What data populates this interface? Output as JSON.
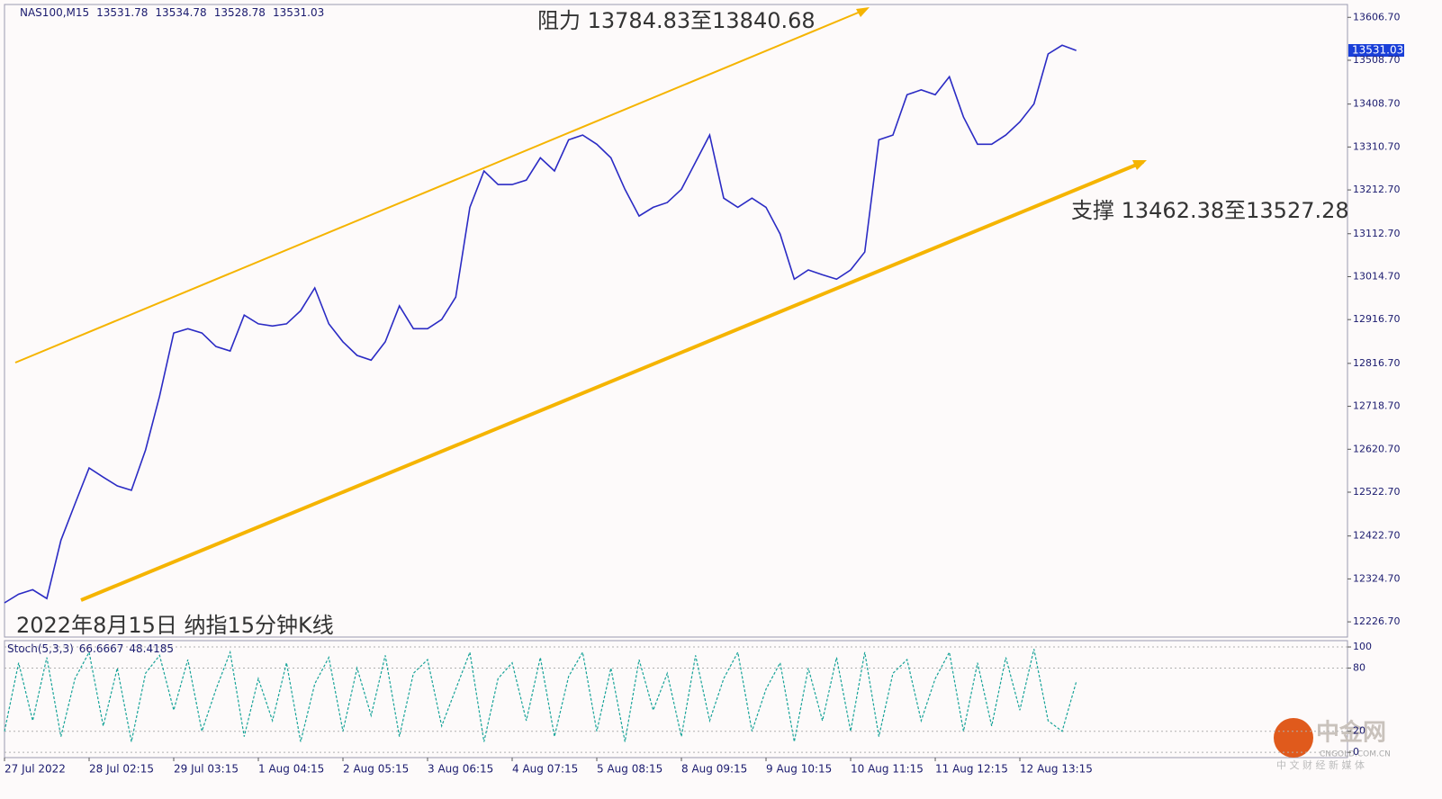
{
  "chart_data": [
    {
      "type": "line",
      "symbol": "NAS100,M15",
      "ohlc": [
        13531.78,
        13534.78,
        13528.78,
        13531.03
      ],
      "annotations": [
        "阻力 13784.83至13840.68",
        "支撑 13462.38至13527.28",
        "2022年8月15日 纳指15分钟K线"
      ],
      "categories": [
        "27 Jul 2022",
        null,
        null,
        null,
        null,
        null,
        "28 Jul 02:15",
        null,
        null,
        null,
        null,
        null,
        "29 Jul 03:15",
        null,
        null,
        null,
        null,
        null,
        "1 Aug 04:15",
        null,
        null,
        null,
        null,
        null,
        "2 Aug 05:15",
        null,
        null,
        null,
        null,
        null,
        "3 Aug 06:15",
        null,
        null,
        null,
        null,
        null,
        "4 Aug 07:15",
        null,
        null,
        null,
        null,
        null,
        "5 Aug 08:15",
        null,
        null,
        null,
        null,
        null,
        "8 Aug 09:15",
        null,
        null,
        null,
        null,
        null,
        "9 Aug 10:15",
        null,
        null,
        null,
        null,
        null,
        "10 Aug 11:15",
        null,
        null,
        null,
        null,
        null,
        "11 Aug 12:15",
        null,
        null,
        null,
        null,
        null,
        "12 Aug 13:15",
        null,
        null,
        null,
        null
      ],
      "values": [
        12270,
        12290,
        12300,
        12280,
        12413,
        12496,
        12578,
        12557,
        12537,
        12527,
        12619,
        12742,
        12886,
        12896,
        12886,
        12855,
        12845,
        12927,
        12907,
        12902,
        12907,
        12937,
        12989,
        12907,
        12866,
        12835,
        12824,
        12866,
        12948,
        12896,
        12896,
        12917,
        12968,
        13173,
        13256,
        13225,
        13225,
        13235,
        13286,
        13256,
        13327,
        13338,
        13317,
        13286,
        13214,
        13153,
        13173,
        13184,
        13214,
        13276,
        13338,
        13194,
        13173,
        13194,
        13173,
        13112,
        13009,
        13030,
        13019,
        13009,
        13030,
        13071,
        13327,
        13338,
        13430,
        13441,
        13430,
        13471,
        13379,
        13317,
        13317,
        13338,
        13368,
        13409,
        13523,
        13543,
        13531
      ],
      "color": "#2b2bc4",
      "ylim": [
        12192,
        13636
      ],
      "yticks": [
        {
          "value": 12226.7,
          "label": "12226.70"
        },
        {
          "value": 12324.7,
          "label": "12324.70"
        },
        {
          "value": 12422.7,
          "label": "12422.70"
        },
        {
          "value": 12522.7,
          "label": "12522.70"
        },
        {
          "value": 12620.7,
          "label": "12620.70"
        },
        {
          "value": 12718.7,
          "label": "12718.70"
        },
        {
          "value": 12816.7,
          "label": "12816.70"
        },
        {
          "value": 12916.7,
          "label": "12916.70"
        },
        {
          "value": 13014.7,
          "label": "13014.70"
        },
        {
          "value": 13112.7,
          "label": "13112.70"
        },
        {
          "value": 13212.7,
          "label": "13212.70"
        },
        {
          "value": 13310.7,
          "label": "13310.70"
        },
        {
          "value": 13408.7,
          "label": "13408.70"
        },
        {
          "value": 13508.7,
          "label": "13508.70"
        },
        {
          "value": 13606.7,
          "label": "13606.70"
        }
      ]
    },
    {
      "type": "line",
      "indicator": "Stoch(5,3,3)",
      "readings": [
        66.6667,
        48.4185
      ],
      "values": [
        20,
        85,
        30,
        90,
        15,
        70,
        95,
        25,
        80,
        10,
        75,
        92,
        40,
        88,
        20,
        60,
        95,
        15,
        70,
        30,
        85,
        10,
        65,
        90,
        20,
        80,
        35,
        92,
        15,
        75,
        88,
        25,
        60,
        95,
        10,
        70,
        85,
        30,
        90,
        15,
        72,
        95,
        20,
        80,
        10,
        88,
        40,
        75,
        15,
        92,
        30,
        70,
        95,
        20,
        60,
        85,
        10,
        80,
        30,
        90,
        20,
        95,
        15,
        75,
        88,
        30,
        70,
        95,
        20,
        85,
        25,
        90,
        40,
        98,
        30,
        20,
        67
      ],
      "color": "#17a398",
      "ylim": [
        -5,
        106
      ],
      "yticks": [
        0,
        20,
        80,
        100
      ]
    }
  ],
  "watermark": {
    "name": "中金网",
    "domain": "CNGOLD.COM.CN",
    "slogan": "中 文 财 经 新 媒 体"
  }
}
